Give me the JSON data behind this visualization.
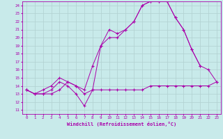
{
  "bg_color": "#c8eaea",
  "grid_color": "#b0d0d0",
  "line_color": "#aa00aa",
  "xlabel": "Windchill (Refroidissement éolien,°C)",
  "xlim": [
    -0.5,
    23.5
  ],
  "ylim": [
    10.5,
    24.5
  ],
  "yticks": [
    11,
    12,
    13,
    14,
    15,
    16,
    17,
    18,
    19,
    20,
    21,
    22,
    23,
    24
  ],
  "xticks": [
    0,
    1,
    2,
    3,
    4,
    5,
    6,
    7,
    8,
    9,
    10,
    11,
    12,
    13,
    14,
    15,
    16,
    17,
    18,
    19,
    20,
    21,
    22,
    23
  ],
  "line1_x": [
    0,
    1,
    2,
    3,
    4,
    5,
    6,
    7,
    8,
    9,
    10,
    11,
    12,
    13,
    14,
    15,
    16,
    17,
    18,
    19,
    20,
    21
  ],
  "line1_y": [
    13.5,
    13.0,
    13.0,
    13.5,
    14.5,
    14.0,
    13.0,
    11.5,
    13.5,
    19.0,
    20.0,
    20.0,
    21.0,
    22.0,
    24.0,
    24.5,
    24.5,
    24.5,
    22.5,
    21.0,
    18.5,
    16.5
  ],
  "line2_x": [
    0,
    1,
    2,
    3,
    4,
    5,
    6,
    7,
    8,
    9,
    10,
    11,
    12,
    13,
    14,
    15,
    16,
    17,
    18,
    19,
    20,
    21,
    22,
    23
  ],
  "line2_y": [
    13.5,
    13.0,
    13.0,
    13.0,
    13.5,
    14.5,
    14.0,
    13.0,
    13.5,
    13.5,
    13.5,
    13.5,
    13.5,
    13.5,
    13.5,
    14.0,
    14.0,
    14.0,
    14.0,
    14.0,
    14.0,
    14.0,
    14.0,
    14.5
  ],
  "line3_x": [
    0,
    1,
    2,
    3,
    4,
    5,
    6,
    7,
    8,
    9,
    10,
    11,
    12,
    13,
    14,
    15,
    16,
    17,
    18,
    19,
    20,
    21,
    22,
    23
  ],
  "line3_y": [
    13.5,
    13.0,
    13.5,
    14.0,
    15.0,
    14.5,
    14.0,
    13.5,
    16.5,
    19.0,
    21.0,
    20.5,
    21.0,
    22.0,
    24.0,
    24.5,
    24.5,
    24.5,
    22.5,
    21.0,
    18.5,
    16.5,
    16.0,
    14.5
  ]
}
